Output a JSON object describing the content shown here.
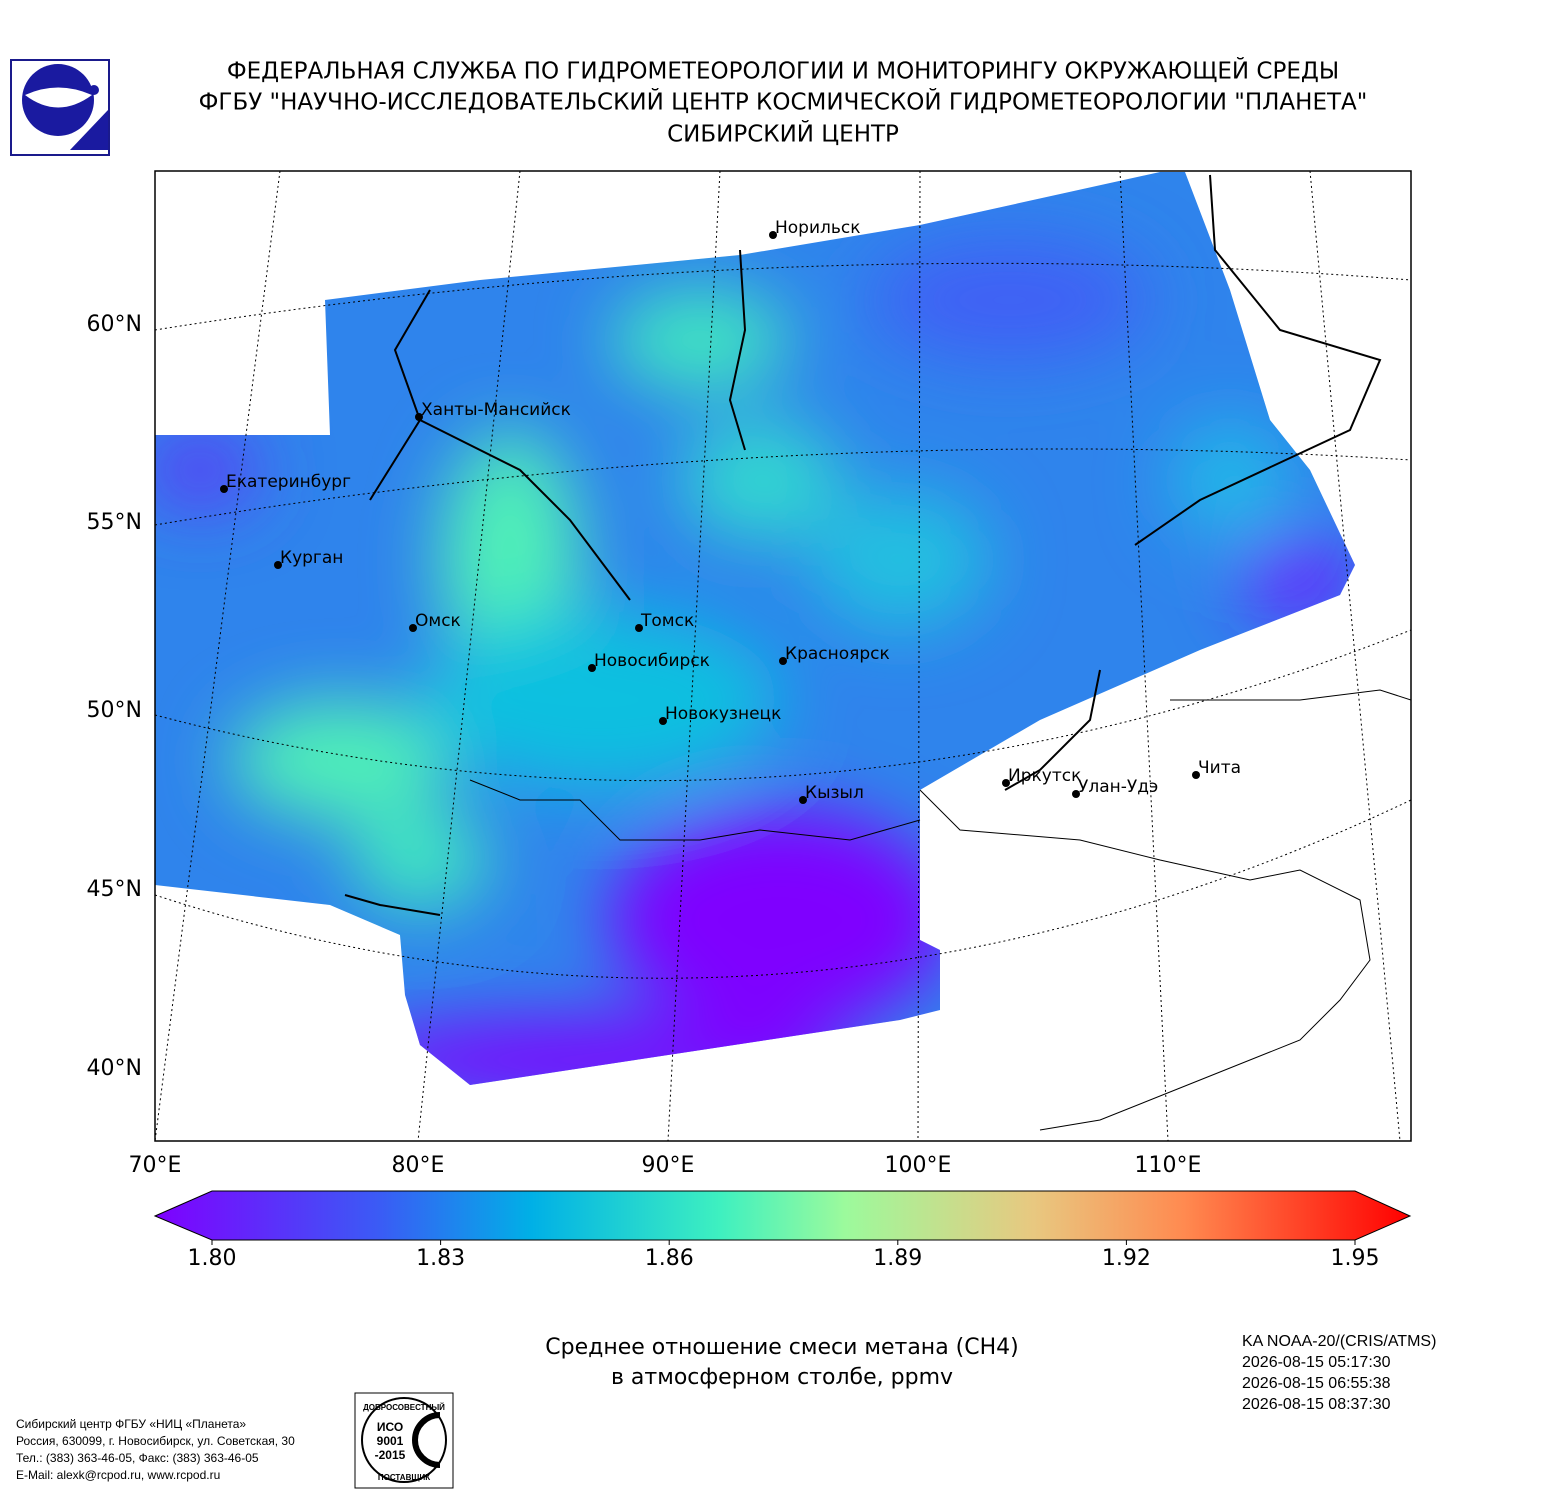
{
  "header": {
    "lines": [
      "ФЕДЕРАЛЬНАЯ СЛУЖБА ПО ГИДРОМЕТЕОРОЛОГИИ И МОНИТОРИНГУ ОКРУЖАЮЩЕЙ СРЕДЫ",
      "ФГБУ \"НАУЧНО-ИССЛЕДОВАТЕЛЬСКИЙ ЦЕНТР КОСМИЧЕСКОЙ ГИДРОМЕТЕОРОЛОГИИ \"ПЛАНЕТА\"",
      "СИБИРСКИЙ ЦЕНТР"
    ]
  },
  "map": {
    "lat_labels": [
      "60°N",
      "55°N",
      "50°N",
      "45°N",
      "40°N"
    ],
    "lon_labels": [
      "70°E",
      "80°E",
      "90°E",
      "100°E",
      "110°E"
    ],
    "cities": [
      "Норильск",
      "Ханты-Мансийск",
      "Екатеринбург",
      "Курган",
      "Омск",
      "Томск",
      "Новосибирск",
      "Красноярск",
      "Новокузнецк",
      "Кызыл",
      "Иркутск",
      "Улан-Удэ",
      "Чита"
    ]
  },
  "colorbar": {
    "range": [
      1.8,
      1.95
    ],
    "ticks": [
      {
        "value": 1.8,
        "label": "1.80"
      },
      {
        "value": 1.83,
        "label": "1.83"
      },
      {
        "value": 1.86,
        "label": "1.86"
      },
      {
        "value": 1.89,
        "label": "1.89"
      },
      {
        "value": 1.92,
        "label": "1.92"
      },
      {
        "value": 1.95,
        "label": "1.95"
      }
    ]
  },
  "caption": [
    "Среднее отношение смеси метана (CH4)",
    "в атмосферном столбе, ppmv"
  ],
  "satellite": [
    "KA NOAA-20/(CRIS/ATMS)",
    "2026-08-15 05:17:30",
    "2026-08-15 06:55:38",
    "2026-08-15 08:37:30"
  ],
  "footer": [
    "Сибирский центр ФГБУ «НИЦ «Планета»",
    "Россия, 630099, г. Новосибирск, ул. Советская, 30",
    "Тел.: (383) 363-46-05, Факс: (383) 363-46-05",
    "E-Mail: alexk@rcpod.ru, www.rcpod.ru"
  ],
  "iso": [
    "ДОБРОСОВЕСТНЫЙ",
    "ИСО",
    "9001",
    "-2015",
    "ПОСТАВЩИК"
  ]
}
